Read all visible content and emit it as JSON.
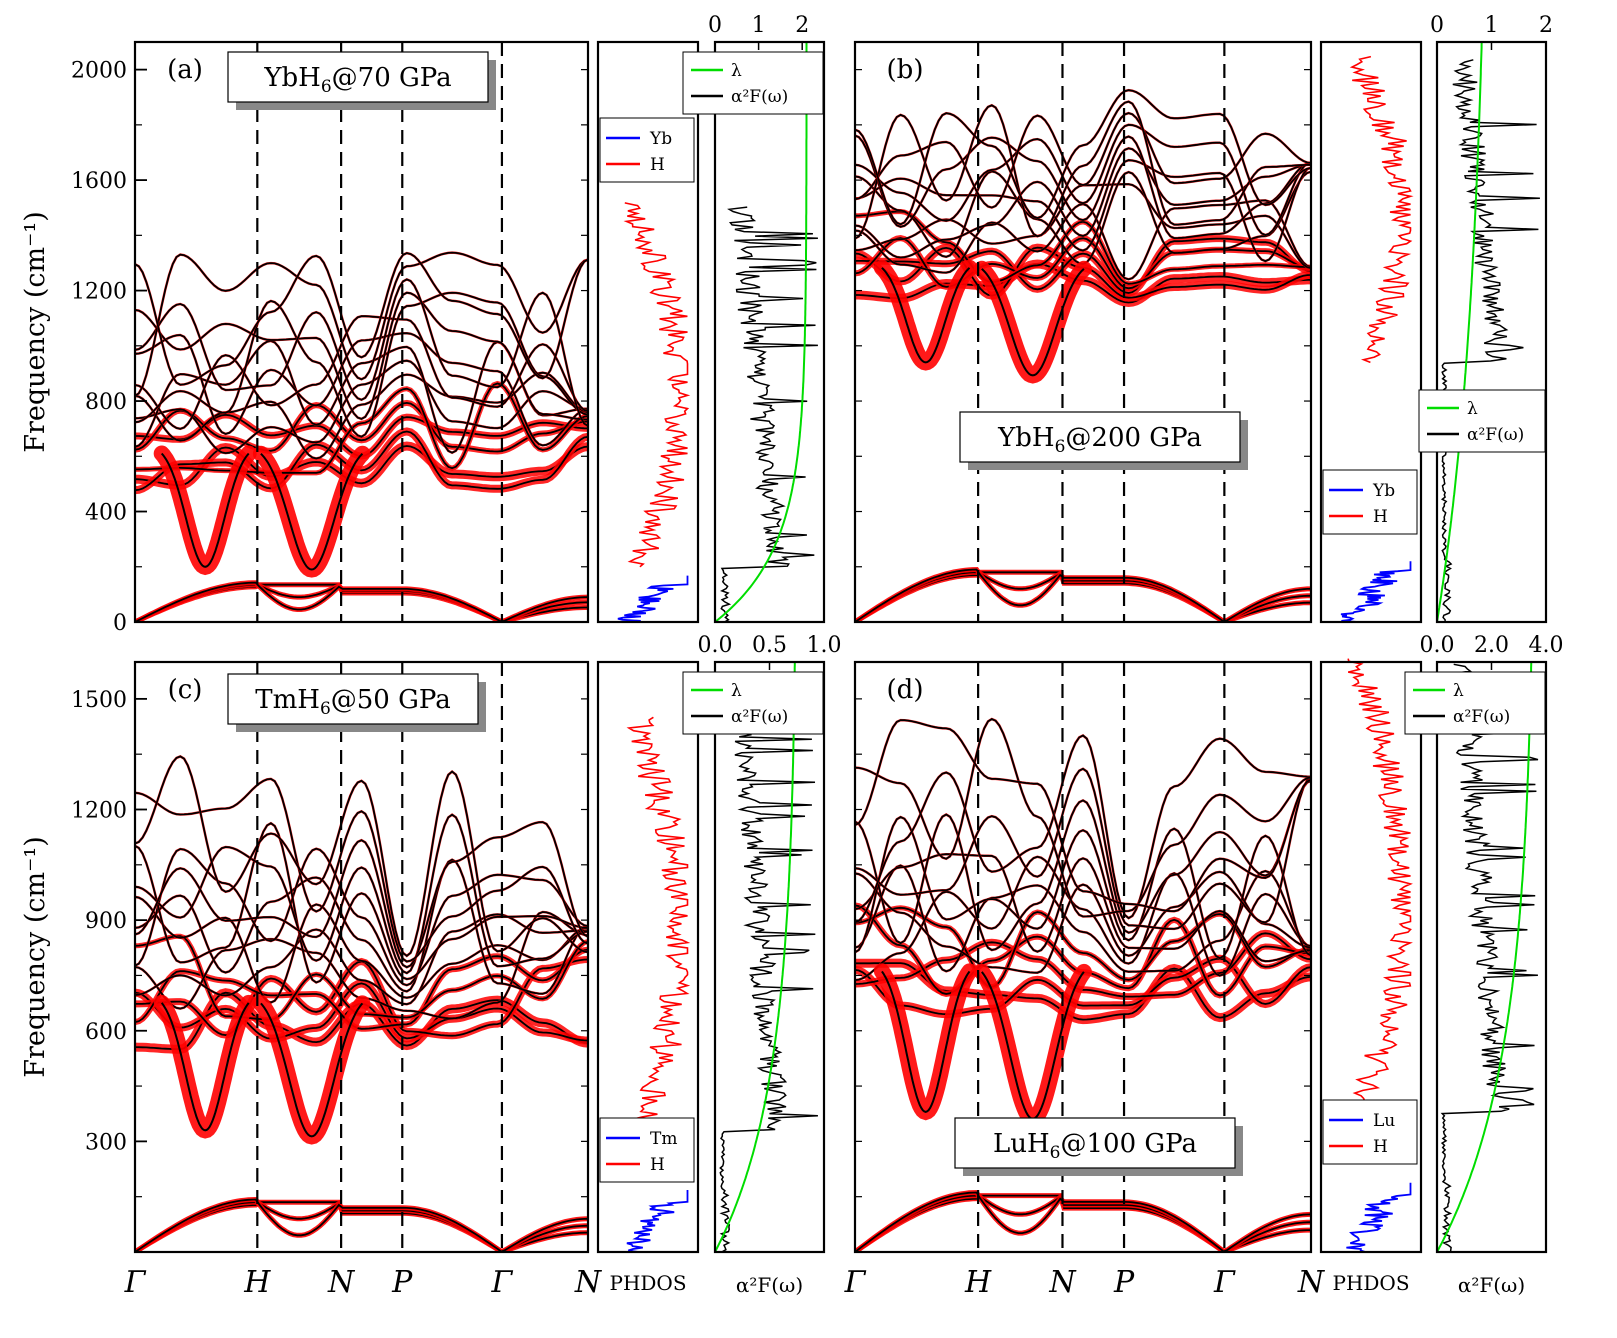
{
  "chart_data": [
    {
      "type": "line",
      "panel": "(a)",
      "title": "YbH6@70 GPa",
      "title_base": "YbH",
      "title_sub": "6",
      "title_rest": "@70 GPa",
      "ylabel": "Frequency (cm⁻¹)",
      "ylim": [
        0,
        2100
      ],
      "yticks": [
        0,
        400,
        800,
        1200,
        1600,
        2000
      ],
      "high_symmetry_points": [
        "Γ",
        "H",
        "N",
        "P",
        "Γ",
        "N"
      ],
      "phdos_legend": [
        "Yb",
        "H"
      ],
      "eliash_legend": [
        "λ",
        "α²F(ω)"
      ],
      "lambda_ticks": [
        "0",
        "1",
        "2"
      ],
      "lambda_max": 2.5,
      "lambda_final": 2.1,
      "acoustic_top": 150,
      "optic_min": 200,
      "optic_max": 1470
    },
    {
      "type": "line",
      "panel": "(b)",
      "title": "YbH6@200 GPa",
      "title_base": "YbH",
      "title_sub": "6",
      "title_rest": "@200 GPa",
      "ylim": [
        0,
        2100
      ],
      "high_symmetry_points": [
        "Γ",
        "H",
        "N",
        "P",
        "Γ",
        "N"
      ],
      "phdos_legend": [
        "Yb",
        "H"
      ],
      "eliash_legend": [
        "λ",
        "α²F(ω)"
      ],
      "lambda_ticks": [
        "0",
        "1",
        "2"
      ],
      "lambda_max": 2.0,
      "lambda_final": 1.0,
      "acoustic_top": 200,
      "optic_min": 940,
      "optic_max": 2000
    },
    {
      "type": "line",
      "panel": "(c)",
      "title": "TmH6@50 GPa",
      "title_base": "TmH",
      "title_sub": "6",
      "title_rest": "@50 GPa",
      "ylabel": "Frequency (cm⁻¹)",
      "ylim": [
        0,
        1600
      ],
      "yticks": [
        300,
        600,
        900,
        1200,
        1500
      ],
      "high_symmetry_points": [
        "Γ",
        "H",
        "N",
        "P",
        "Γ",
        "N"
      ],
      "phdos_legend": [
        "Tm",
        "H"
      ],
      "eliash_legend": [
        "λ",
        "α²F(ω)"
      ],
      "lambda_ticks": [
        "0.0",
        "0.5",
        "1.0"
      ],
      "lambda_max": 1.0,
      "lambda_final": 0.75,
      "acoustic_top": 150,
      "optic_min": 330,
      "optic_max": 1400
    },
    {
      "type": "line",
      "panel": "(d)",
      "title": "LuH6@100 GPa",
      "title_base": "LuH",
      "title_sub": "6",
      "title_rest": "@100 GPa",
      "ylim": [
        0,
        1600
      ],
      "high_symmetry_points": [
        "Γ",
        "H",
        "N",
        "P",
        "Γ",
        "N"
      ],
      "phdos_legend": [
        "Lu",
        "H"
      ],
      "eliash_legend": [
        "λ",
        "α²F(ω)"
      ],
      "lambda_ticks": [
        "0.0",
        "2.0",
        "4.0"
      ],
      "lambda_max": 4.0,
      "lambda_final": 3.6,
      "acoustic_top": 170,
      "optic_min": 380,
      "optic_max": 1560
    }
  ],
  "bottom_labels": {
    "phdos": "PHDOS",
    "eliash": "α²F(ω)"
  },
  "colors": {
    "h_dos": "#ff0000",
    "metal_dos": "#0000ff",
    "lambda": "#00dd00",
    "a2f": "#000000",
    "fatband": "#ff0000",
    "band": "#000000"
  }
}
